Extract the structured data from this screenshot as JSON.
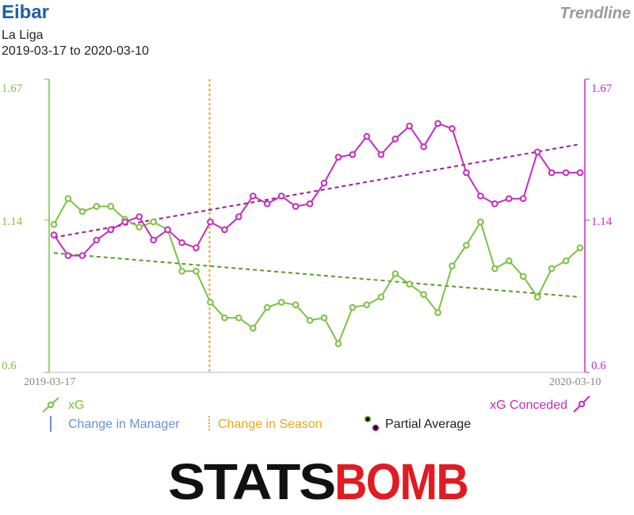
{
  "header": {
    "team": "Eibar",
    "league": "La Liga",
    "date_range": "2019-03-17 to 2020-03-10",
    "mode": "Trendline"
  },
  "legend": {
    "xg": "xG",
    "xg_conceded": "xG Conceded",
    "change_manager": "Change in Manager",
    "change_season": "Change in Season",
    "partial_average": "Partial Average"
  },
  "logo": {
    "part1": "STATS",
    "part2": "BOMB"
  },
  "colors": {
    "xg": "#7cc242",
    "xg_conceded": "#c62bbd",
    "xg_trend": "#5a9a2a",
    "xg_conceded_trend": "#9b1d92",
    "season_change": "#e8a81a",
    "manager_change": "#6a8fd8"
  },
  "chart_data": {
    "type": "line",
    "x_start_label": "2019-03-17",
    "x_end_label": "2020-03-10",
    "ylim": [
      0.6,
      1.67
    ],
    "y_ticks": [
      "1.67",
      "1.14",
      "0.6"
    ],
    "season_change_index": 11,
    "series": [
      {
        "name": "xG",
        "values": [
          1.14,
          1.24,
          1.19,
          1.21,
          1.21,
          1.16,
          1.13,
          1.15,
          1.12,
          0.96,
          0.96,
          0.84,
          0.78,
          0.78,
          0.74,
          0.82,
          0.84,
          0.83,
          0.77,
          0.78,
          0.68,
          0.82,
          0.83,
          0.86,
          0.95,
          0.91,
          0.87,
          0.8,
          0.98,
          1.06,
          1.15,
          0.97,
          1.0,
          0.94,
          0.86,
          0.97,
          1.0,
          1.05
        ]
      },
      {
        "name": "xG Conceded",
        "values": [
          1.1,
          1.02,
          1.02,
          1.08,
          1.12,
          1.15,
          1.17,
          1.08,
          1.12,
          1.07,
          1.05,
          1.15,
          1.12,
          1.17,
          1.25,
          1.22,
          1.25,
          1.21,
          1.22,
          1.3,
          1.4,
          1.41,
          1.48,
          1.41,
          1.47,
          1.52,
          1.44,
          1.53,
          1.51,
          1.34,
          1.25,
          1.22,
          1.24,
          1.24,
          1.42,
          1.34,
          1.34,
          1.34
        ]
      }
    ],
    "trendlines": [
      {
        "name": "xG",
        "start": 1.03,
        "end": 0.86
      },
      {
        "name": "xG Conceded",
        "start": 1.09,
        "end": 1.45
      }
    ]
  }
}
